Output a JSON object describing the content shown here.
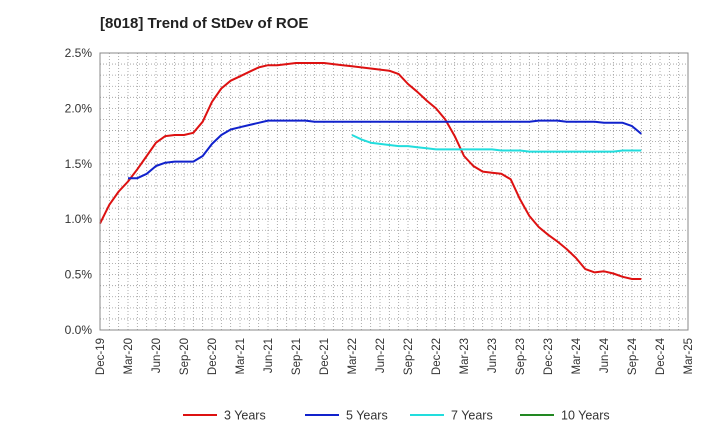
{
  "chart_data": {
    "type": "line",
    "title": "[8018]  Trend of StDev of ROE",
    "xlabel": "",
    "ylabel": "",
    "x_tick_labels": [
      "Dec-19",
      "Mar-20",
      "Jun-20",
      "Sep-20",
      "Dec-20",
      "Mar-21",
      "Jun-21",
      "Sep-21",
      "Dec-21",
      "Mar-22",
      "Jun-22",
      "Sep-22",
      "Dec-22",
      "Mar-23",
      "Jun-23",
      "Sep-23",
      "Dec-23",
      "Mar-24",
      "Jun-24",
      "Sep-24",
      "Dec-24",
      "Mar-25"
    ],
    "y_tick_labels": [
      "0.0%",
      "0.5%",
      "1.0%",
      "1.5%",
      "2.0%",
      "2.5%"
    ],
    "ylim": [
      0,
      2.5
    ],
    "y_unit": "%",
    "grid": true,
    "legend_position": "bottom",
    "series": [
      {
        "name": "3 Years",
        "color": "#dd1111",
        "start_index": 0,
        "values": [
          0.96,
          1.13,
          1.25,
          1.34,
          1.45,
          1.57,
          1.69,
          1.75,
          1.76,
          1.76,
          1.78,
          1.88,
          2.06,
          2.18,
          2.25,
          2.29,
          2.33,
          2.37,
          2.39,
          2.39,
          2.4,
          2.41,
          2.41,
          2.41,
          2.41,
          2.4,
          2.39,
          2.38,
          2.37,
          2.36,
          2.35,
          2.34,
          2.31,
          2.22,
          2.15,
          2.07,
          2.0,
          1.9,
          1.75,
          1.57,
          1.48,
          1.43,
          1.42,
          1.41,
          1.36,
          1.18,
          1.03,
          0.93,
          0.86,
          0.8,
          0.73,
          0.65,
          0.55,
          0.52,
          0.53,
          0.51,
          0.48,
          0.46,
          0.46
        ]
      },
      {
        "name": "5 Years",
        "color": "#1122cc",
        "start_index": 3,
        "values": [
          1.37,
          1.37,
          1.41,
          1.48,
          1.51,
          1.52,
          1.52,
          1.52,
          1.57,
          1.68,
          1.76,
          1.81,
          1.83,
          1.85,
          1.87,
          1.89,
          1.89,
          1.89,
          1.89,
          1.89,
          1.88,
          1.88,
          1.88,
          1.88,
          1.88,
          1.88,
          1.88,
          1.88,
          1.88,
          1.88,
          1.88,
          1.88,
          1.88,
          1.88,
          1.88,
          1.88,
          1.88,
          1.88,
          1.88,
          1.88,
          1.88,
          1.88,
          1.88,
          1.88,
          1.89,
          1.89,
          1.89,
          1.88,
          1.88,
          1.88,
          1.88,
          1.87,
          1.87,
          1.87,
          1.84,
          1.77
        ]
      },
      {
        "name": "7 Years",
        "color": "#22dddd",
        "start_index": 27,
        "values": [
          1.76,
          1.72,
          1.69,
          1.68,
          1.67,
          1.66,
          1.66,
          1.65,
          1.64,
          1.63,
          1.63,
          1.63,
          1.63,
          1.63,
          1.63,
          1.63,
          1.62,
          1.62,
          1.62,
          1.61,
          1.61,
          1.61,
          1.61,
          1.61,
          1.61,
          1.61,
          1.61,
          1.61,
          1.61,
          1.62,
          1.62,
          1.62
        ]
      },
      {
        "name": "10 Years",
        "color": "#228822",
        "start_index": 0,
        "values": []
      }
    ]
  }
}
